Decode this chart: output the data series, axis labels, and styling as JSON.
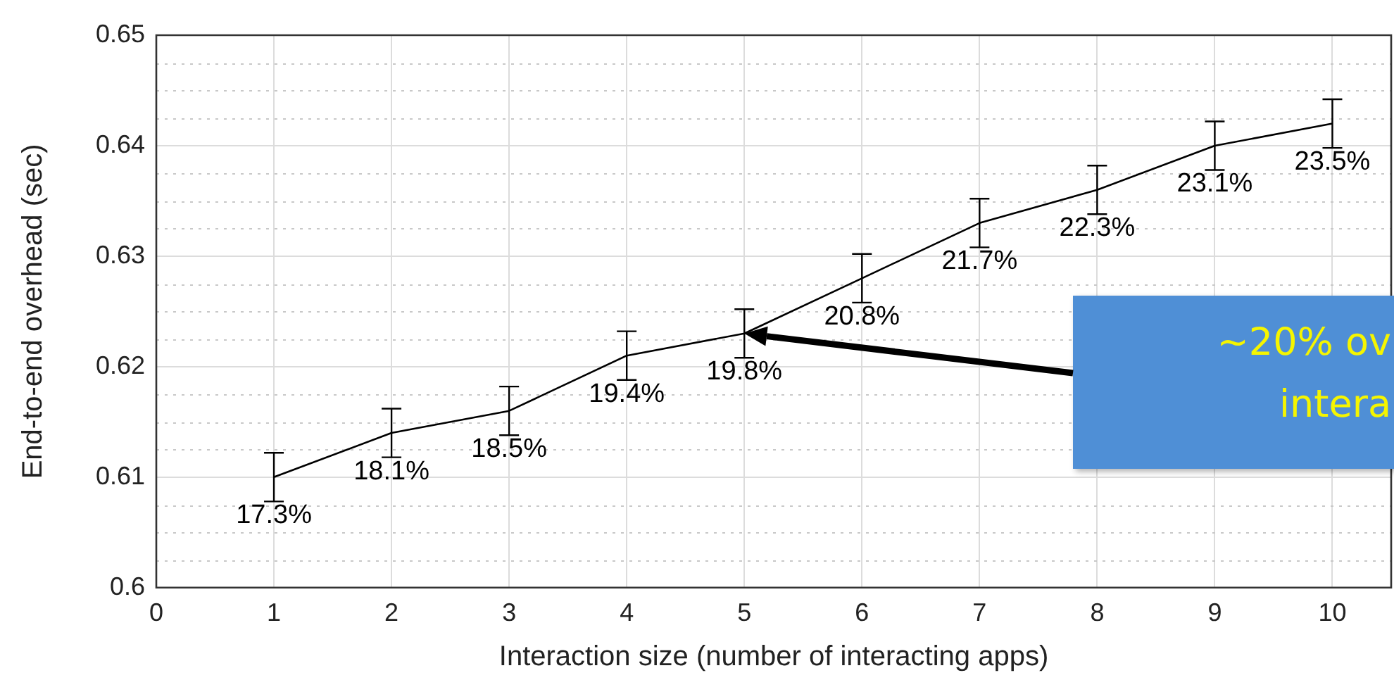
{
  "chart_data": {
    "type": "line",
    "xlabel": "Interaction size (number of interacting apps)",
    "ylabel": "End-to-end overhead (sec)",
    "x": [
      1,
      2,
      3,
      4,
      5,
      6,
      7,
      8,
      9,
      10
    ],
    "series": [
      {
        "color": "#000000",
        "values": [
          0.61,
          0.614,
          0.616,
          0.621,
          0.623,
          0.628,
          0.633,
          0.636,
          0.64,
          0.642
        ],
        "errors": [
          0.0022,
          0.0022,
          0.0022,
          0.0022,
          0.0022,
          0.0022,
          0.0022,
          0.0022,
          0.0022,
          0.0022
        ]
      }
    ],
    "xlim": [
      0,
      10.5
    ],
    "xticks": [
      0,
      1,
      2,
      3,
      4,
      5,
      6,
      7,
      8,
      9,
      10
    ],
    "ylim": [
      0.6,
      0.65
    ],
    "yticks": [
      0.6,
      0.61,
      0.62,
      0.63,
      0.64,
      0.65
    ],
    "grid": true,
    "marker": "none",
    "line_style": "solid",
    "annotations": [
      {
        "text": "17.3%",
        "x": 1,
        "y": 0.61
      },
      {
        "text": "18.1%",
        "x": 2,
        "y": 0.614
      },
      {
        "text": "18.5%",
        "x": 3,
        "y": 0.616
      },
      {
        "text": "19.4%",
        "x": 4,
        "y": 0.621
      },
      {
        "text": "19.8%",
        "x": 5,
        "y": 0.623
      },
      {
        "text": "20.8%",
        "x": 6,
        "y": 0.628
      },
      {
        "text": "21.7%",
        "x": 7,
        "y": 0.633
      },
      {
        "text": "22.3%",
        "x": 8,
        "y": 0.636
      },
      {
        "text": "23.1%",
        "x": 9,
        "y": 0.64
      },
      {
        "text": "23.5%",
        "x": 10,
        "y": 0.642
      },
      "~20% ov\nintera"
    ]
  }
}
